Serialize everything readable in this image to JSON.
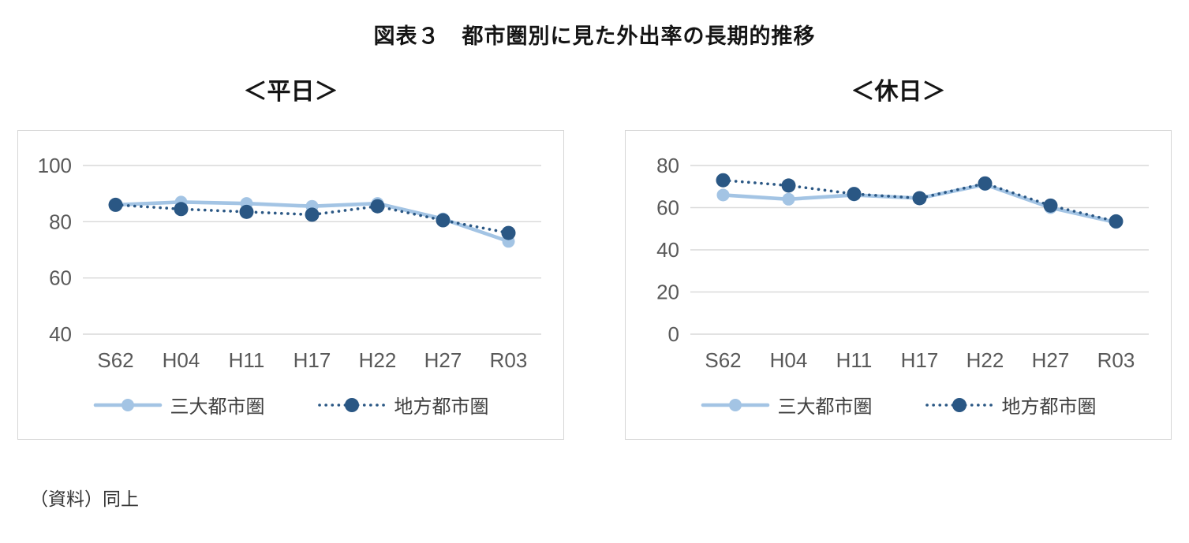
{
  "page_title": "図表３　都市圏別に見た外出率の長期的推移",
  "source_note": "（資料）同上",
  "colors": {
    "series_light": "#a3c4e4",
    "series_dark": "#2a5784",
    "grid": "#d9d9d9",
    "axis_text": "#595959",
    "title_text": "#151515",
    "border": "#d6d6d6"
  },
  "chart_data": [
    {
      "type": "line",
      "title": "＜平日＞",
      "categories": [
        "S62",
        "H04",
        "H11",
        "H17",
        "H22",
        "H27",
        "R03"
      ],
      "series": [
        {
          "name": "三大都市圏",
          "style": "solid",
          "color": "#a3c4e4",
          "values": [
            86,
            87,
            86.5,
            85.5,
            86.5,
            81,
            73
          ]
        },
        {
          "name": "地方都市圏",
          "style": "dotted",
          "color": "#2a5784",
          "values": [
            86,
            84.5,
            83.5,
            82.5,
            85.5,
            80.5,
            76
          ]
        }
      ],
      "ylim": [
        40,
        100
      ],
      "yticks": [
        40,
        60,
        80,
        100
      ],
      "grid": true,
      "legend_position": "bottom",
      "ylabel": "",
      "xlabel": ""
    },
    {
      "type": "line",
      "title": "＜休日＞",
      "categories": [
        "S62",
        "H04",
        "H11",
        "H17",
        "H22",
        "H27",
        "R03"
      ],
      "series": [
        {
          "name": "三大都市圏",
          "style": "solid",
          "color": "#a3c4e4",
          "values": [
            66,
            64,
            66,
            64.5,
            71,
            60,
            53
          ]
        },
        {
          "name": "地方都市圏",
          "style": "dotted",
          "color": "#2a5784",
          "values": [
            73,
            70.5,
            66.5,
            64.5,
            71.5,
            61,
            53.5
          ]
        }
      ],
      "ylim": [
        0,
        80
      ],
      "yticks": [
        0,
        20,
        40,
        60,
        80
      ],
      "grid": true,
      "legend_position": "bottom",
      "ylabel": "",
      "xlabel": ""
    }
  ]
}
